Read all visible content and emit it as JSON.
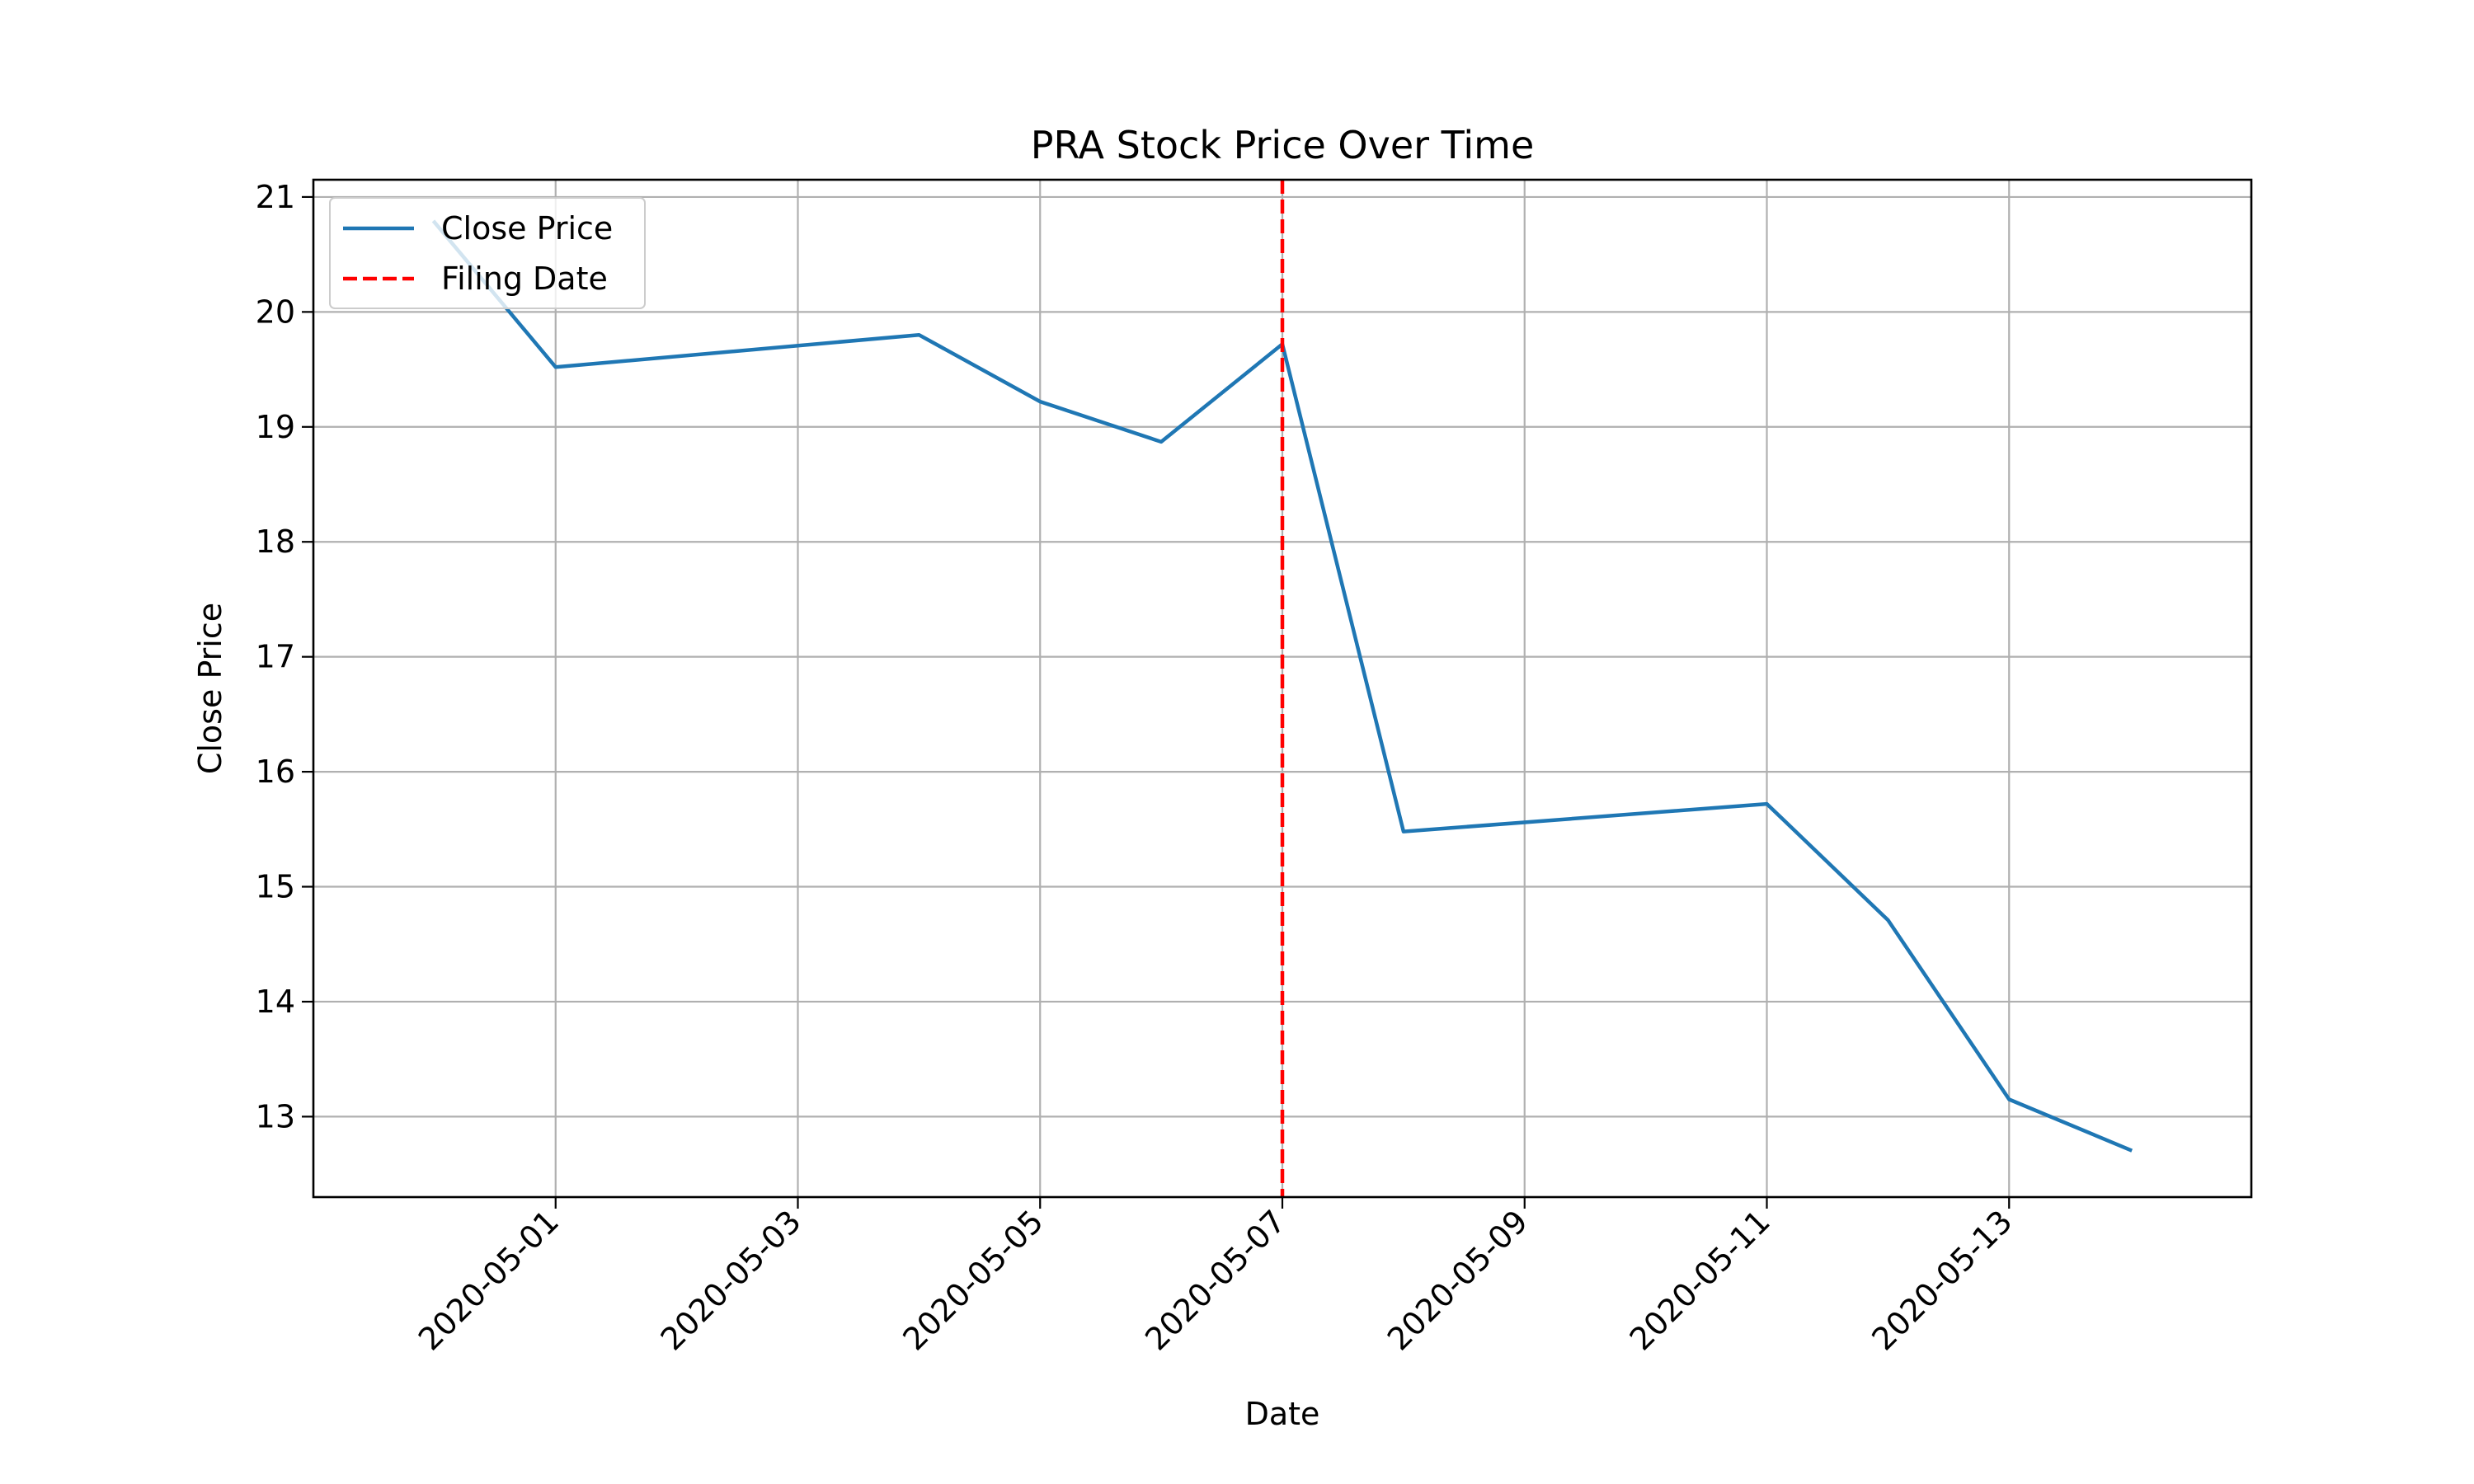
{
  "chart_data": {
    "type": "line",
    "title": "PRA Stock Price Over Time",
    "xlabel": "Date",
    "ylabel": "Close Price",
    "x_dates": [
      "2020-04-30",
      "2020-05-01",
      "2020-05-04",
      "2020-05-05",
      "2020-05-06",
      "2020-05-07",
      "2020-05-08",
      "2020-05-11",
      "2020-05-12",
      "2020-05-13",
      "2020-05-14"
    ],
    "x_ticks": [
      "2020-05-01",
      "2020-05-03",
      "2020-05-05",
      "2020-05-07",
      "2020-05-09",
      "2020-05-11",
      "2020-05-13"
    ],
    "xlim": [
      "2020-04-29",
      "2020-05-15"
    ],
    "ylim": [
      12.3,
      21.15
    ],
    "y_ticks": [
      13,
      14,
      15,
      16,
      17,
      18,
      19,
      20,
      21
    ],
    "grid": true,
    "legend_position": "top-left",
    "series": [
      {
        "name": "Close Price",
        "color": "#1f77b4",
        "style": "solid",
        "values": [
          20.78,
          19.52,
          19.8,
          19.22,
          18.87,
          19.72,
          15.48,
          15.72,
          14.71,
          13.15,
          12.71
        ]
      }
    ],
    "vlines": [
      {
        "name": "Filing Date",
        "x": "2020-05-07",
        "color": "#ff0000",
        "style": "dashed"
      }
    ]
  }
}
